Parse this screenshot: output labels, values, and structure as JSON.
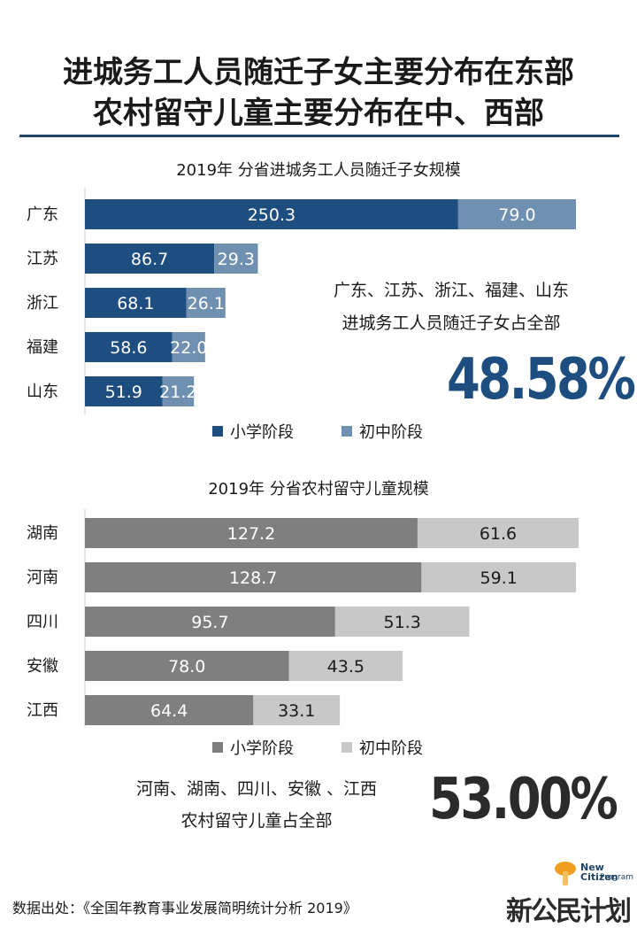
{
  "header": {
    "title_line1": "进城务工人员随迁子女主要分布在东部",
    "title_line2": "农村留守儿童主要分布在中、西部"
  },
  "summary1": {
    "line1": "广东、江苏、浙江、福建、山东",
    "line2": "进城务工人员随迁子女占全部",
    "percent": "48.58%"
  },
  "summary2": {
    "line1": "河南、湖南、四川、安徽 、江西",
    "line2": "农村留守儿童占全部",
    "percent": "53.00%"
  },
  "footer": {
    "source": "数据出处：《全国年教育事业发展简明统计分析 2019》",
    "logo_cn": "新公民计划",
    "logo_en1": "New Citizen",
    "logo_en2": "Program"
  },
  "chart_data": [
    {
      "type": "bar",
      "orientation": "horizontal",
      "stacked": true,
      "title": "2019年 分省进城务工人员随迁子女规模",
      "categories": [
        "广东",
        "江苏",
        "浙江",
        "福建",
        "山东"
      ],
      "series": [
        {
          "name": "小学阶段",
          "values": [
            250.3,
            86.7,
            68.1,
            58.6,
            51.9
          ],
          "color": "#1e4d80",
          "label_color": "#ffffff"
        },
        {
          "name": "初中阶段",
          "values": [
            79.0,
            29.3,
            26.1,
            22.0,
            21.2
          ],
          "color": "#6f90b0",
          "label_color": "#ffffff"
        }
      ],
      "xlim": [
        0,
        329.3
      ],
      "legend": "bottom"
    },
    {
      "type": "bar",
      "orientation": "horizontal",
      "stacked": true,
      "title": "2019年 分省农村留守儿童规模",
      "categories": [
        "湖南",
        "河南",
        "四川",
        "安徽",
        "江西"
      ],
      "series": [
        {
          "name": "小学阶段",
          "values": [
            127.2,
            128.7,
            95.7,
            78.0,
            64.4
          ],
          "color": "#7f7f7f",
          "label_color": "#ffffff"
        },
        {
          "name": "初中阶段",
          "values": [
            61.6,
            59.1,
            51.3,
            43.5,
            33.1
          ],
          "color": "#c8c8c8",
          "label_color": "#1a1a1a"
        }
      ],
      "xlim": [
        0,
        188.8
      ],
      "legend": "bottom"
    }
  ]
}
